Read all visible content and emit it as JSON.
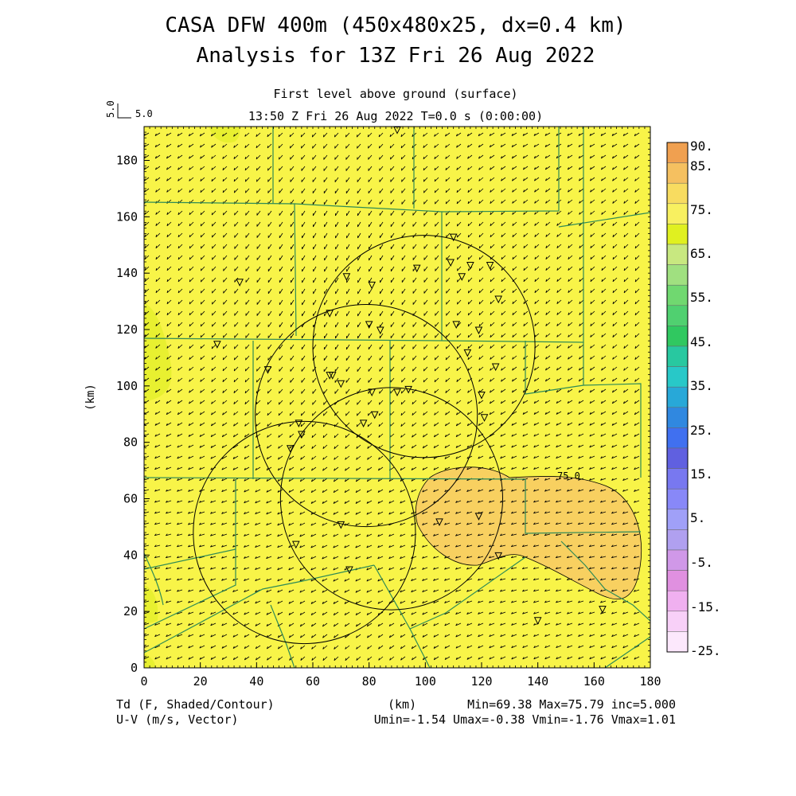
{
  "header": {
    "title_line1": "CASA DFW 400m (450x480x25, dx=0.4 km)",
    "title_line2": "Analysis for 13Z Fri 26 Aug 2022",
    "level": "First level above ground (surface)",
    "time": "13:50 Z Fri 26 Aug 2022    T=0.0 s (0:00:00)"
  },
  "reference_vector": {
    "label_small": "5.0",
    "label": "5.0"
  },
  "axes": {
    "x_label": "(km)",
    "y_label": "(km)",
    "x_ticks": [
      "0",
      "20",
      "40",
      "60",
      "80",
      "100",
      "120",
      "140",
      "160",
      "180"
    ],
    "y_ticks": [
      "0",
      "20",
      "40",
      "60",
      "80",
      "100",
      "120",
      "140",
      "160",
      "180"
    ],
    "x_range": [
      0,
      180
    ],
    "y_range": [
      0,
      192
    ]
  },
  "colorbar": {
    "labels": [
      "90.",
      "85.",
      "75.",
      "65.",
      "55.",
      "45.",
      "35.",
      "25.",
      "15.",
      "5.",
      "-5.",
      "-15.",
      "-25."
    ],
    "colors": [
      "#f0a050",
      "#f5c060",
      "#f8dc60",
      "#f8f060",
      "#e0f020",
      "#c8e880",
      "#a0e080",
      "#70d870",
      "#50d070",
      "#30c860",
      "#28c8a0",
      "#28c8c8",
      "#28a8d8",
      "#3088e0",
      "#4070f0",
      "#6060e0",
      "#7878f0",
      "#8888f8",
      "#a0a0f8",
      "#b0a0f0",
      "#d098e8",
      "#e090e0",
      "#f0b0f0",
      "#f8d0f8",
      "#fce8fc"
    ]
  },
  "contour_label": "75.0",
  "footer": {
    "left_line1": "Td (F, Shaded/Contour)",
    "left_line2": "U-V (m/s, Vector)",
    "center": "(km)",
    "stats_line1": "Min=69.38 Max=75.79 inc=5.000",
    "stats_line2": "Umin=-1.54 Umax=-0.38 Vmin=-1.76 Vmax=1.01"
  },
  "field": {
    "base_color": "#f8f448",
    "greener_color": "#e8f030",
    "warm_color": "#f8d060",
    "boundary_color": "#2e8b57",
    "radar_ring_color": "#000000",
    "min": 69.38,
    "max": 75.79
  },
  "stations_km": [
    [
      34,
      137
    ],
    [
      44,
      106
    ],
    [
      26,
      115
    ],
    [
      90,
      191
    ],
    [
      72,
      139
    ],
    [
      81,
      136
    ],
    [
      66,
      126
    ],
    [
      80,
      122
    ],
    [
      84,
      120
    ],
    [
      97,
      142
    ],
    [
      110,
      153
    ],
    [
      109,
      144
    ],
    [
      113,
      139
    ],
    [
      116,
      143
    ],
    [
      123,
      143
    ],
    [
      126,
      131
    ],
    [
      111,
      122
    ],
    [
      119,
      120
    ],
    [
      115,
      112
    ],
    [
      125,
      107
    ],
    [
      67,
      104
    ],
    [
      70,
      101
    ],
    [
      81,
      98
    ],
    [
      90,
      98
    ],
    [
      94,
      99
    ],
    [
      120,
      97
    ],
    [
      121,
      89
    ],
    [
      78,
      87
    ],
    [
      82,
      90
    ],
    [
      55,
      87
    ],
    [
      56,
      83
    ],
    [
      52,
      78
    ],
    [
      70,
      51
    ],
    [
      105,
      52
    ],
    [
      119,
      54
    ],
    [
      126,
      40
    ],
    [
      54,
      44
    ],
    [
      73,
      35
    ],
    [
      140,
      17
    ],
    [
      163,
      21
    ],
    [
      66,
      104
    ]
  ],
  "radar_rings_km": [
    {
      "cx": 99.5,
      "cy": 114,
      "r": 39.5
    },
    {
      "cx": 79,
      "cy": 89.5,
      "r": 39.5
    },
    {
      "cx": 57,
      "cy": 48,
      "r": 39.5
    },
    {
      "cx": 88,
      "cy": 60,
      "r": 39.5
    }
  ]
}
